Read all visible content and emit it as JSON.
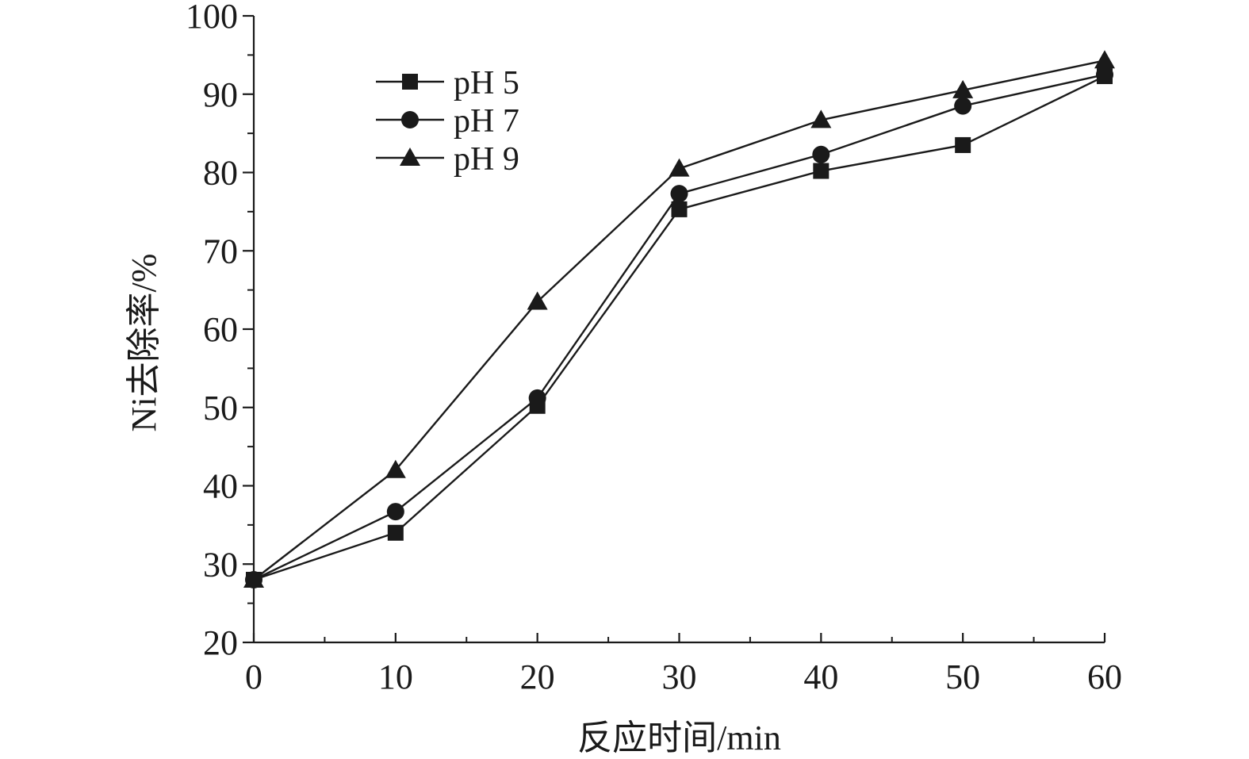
{
  "chart_data": {
    "type": "line",
    "title": "",
    "xlabel": "反应时间/min",
    "ylabel": "Ni去除率/%",
    "x": [
      0,
      10,
      20,
      30,
      40,
      50,
      60
    ],
    "xlim": [
      0,
      60
    ],
    "ylim": [
      20,
      100
    ],
    "xticks": [
      0,
      10,
      20,
      30,
      40,
      50,
      60
    ],
    "yticks": [
      20,
      30,
      40,
      50,
      60,
      70,
      80,
      90,
      100
    ],
    "grid": false,
    "legend_position": "top-left",
    "series": [
      {
        "name": "pH 5",
        "marker": "square",
        "values": [
          28.0,
          34.0,
          50.2,
          75.3,
          80.2,
          83.5,
          92.3
        ]
      },
      {
        "name": "pH 7",
        "marker": "circle",
        "values": [
          28.0,
          36.7,
          51.2,
          77.3,
          82.3,
          88.5,
          92.5
        ]
      },
      {
        "name": "pH 9",
        "marker": "triangle",
        "values": [
          28.0,
          42.0,
          63.5,
          80.5,
          86.7,
          90.5,
          94.3
        ]
      }
    ],
    "colors": {
      "line": "#1a1a1a",
      "marker": "#1a1a1a"
    }
  }
}
